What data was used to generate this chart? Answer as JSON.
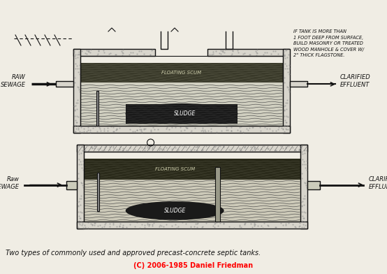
{
  "bg_color": "#f0ede4",
  "line_color": "#111111",
  "title": "Two types of commonly used and approved precast-concrete septic tanks.",
  "copyright": "(C) 2006-1985 Daniel Friedman",
  "note_text": "IF TANK IS MORE THAN\n1 FOOT DEEP FROM SURFACE,\nBUILD MASONRY OR TREATED\nWOOD MANHOLE & COVER W/\n2\" THICK FLAGSTONE.",
  "tank1": {
    "label_in": "RAW\nSEWAGE",
    "label_out": "CLARIFIED\nEFFLUENT",
    "floating_scum": "FLOATING SCUM",
    "sludge": "SLUDGE"
  },
  "tank2": {
    "label_in": "Raw\nSEWAGE",
    "label_out": "CLARIFIED\nEFFLUENT",
    "floating_scum": "FLOATING SCUM",
    "sludge": "SLUDGE"
  }
}
